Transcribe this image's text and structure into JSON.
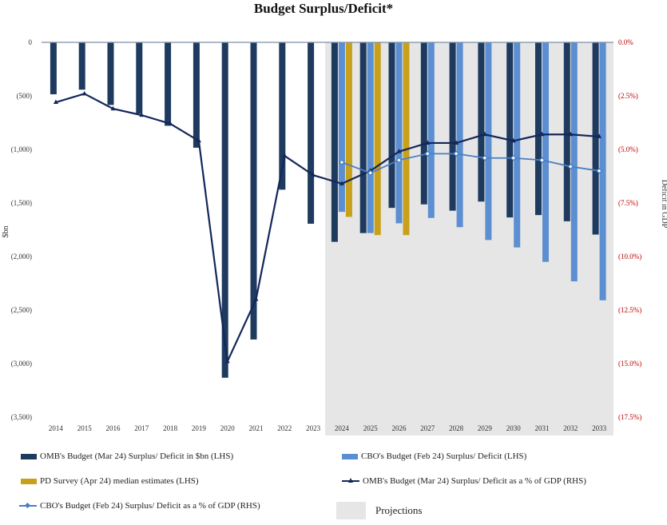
{
  "chart_data": {
    "type": "bar",
    "title": "Budget Surplus/Deficit*",
    "ylabel_left": "$bn",
    "ylabel_right": "Deficit in GDP",
    "ylim_left": [
      -3500,
      0
    ],
    "ylim_right": [
      -17.5,
      0
    ],
    "yticks_left": [
      0,
      -500,
      -1000,
      -1500,
      -2000,
      -2500,
      -3000,
      -3500
    ],
    "yticks_left_labels": [
      "0",
      "(500)",
      "(1,000)",
      "(1,500)",
      "(2,000)",
      "(2,500)",
      "(3,000)",
      "(3,500)"
    ],
    "yticks_right_labels": [
      "0.0%",
      "(2.5%)",
      "(5.0%)",
      "(7.5%)",
      "(10.0%)",
      "(12.5%)",
      "(15.0%)",
      "(17.5%)"
    ],
    "categories": [
      "2014",
      "2015",
      "2016",
      "2017",
      "2018",
      "2019",
      "2020",
      "2021",
      "2022",
      "2023",
      "2024",
      "2025",
      "2026",
      "2027",
      "2028",
      "2029",
      "2030",
      "2031",
      "2032",
      "2033"
    ],
    "projection_start": "2024",
    "projection_label": "Projections",
    "series": [
      {
        "name": "OMB's Budget  (Mar 24) Surplus/ Deficit in $bn (LHS)",
        "kind": "bar",
        "axis": "left",
        "color": "#1f3a5f",
        "values": [
          -485,
          -442,
          -585,
          -665,
          -779,
          -984,
          -3132,
          -2775,
          -1376,
          -1694,
          -1863,
          -1781,
          -1546,
          -1513,
          -1572,
          -1487,
          -1635,
          -1613,
          -1671,
          -1795
        ]
      },
      {
        "name": "CBO's Budget (Feb 24) Surplus/ Deficit (LHS)",
        "kind": "bar",
        "axis": "left",
        "color": "#5b8fd1",
        "values": [
          null,
          null,
          null,
          null,
          null,
          null,
          null,
          null,
          null,
          null,
          -1583,
          -1781,
          -1690,
          -1640,
          -1726,
          -1846,
          -1915,
          -2050,
          -2232,
          -2409
        ]
      },
      {
        "name": "PD Survey (Apr 24) median estimates (LHS)",
        "kind": "bar",
        "axis": "left",
        "color": "#c8a01c",
        "values": [
          null,
          null,
          null,
          null,
          null,
          null,
          null,
          null,
          null,
          null,
          -1630,
          -1800,
          -1800,
          null,
          null,
          null,
          null,
          null,
          null,
          null
        ]
      },
      {
        "name": "OMB's Budget  (Mar 24) Surplus/ Deficit as a % of GDP (RHS)",
        "kind": "line",
        "axis": "right",
        "color": "#14275a",
        "marker": "triangle",
        "values": [
          -2.8,
          -2.4,
          -3.1,
          -3.4,
          -3.8,
          -4.6,
          -14.9,
          -12.0,
          -5.3,
          -6.2,
          -6.6,
          -6.0,
          -5.1,
          -4.7,
          -4.7,
          -4.3,
          -4.6,
          -4.3,
          -4.3,
          -4.4
        ]
      },
      {
        "name": "CBO's Budget (Feb 24) Surplus/ Deficit as a % of GDP (RHS)",
        "kind": "line",
        "axis": "right",
        "color": "#4a7fc1",
        "marker": "diamond",
        "values": [
          null,
          null,
          null,
          null,
          null,
          null,
          null,
          null,
          null,
          null,
          -5.6,
          -6.1,
          -5.5,
          -5.2,
          -5.2,
          -5.4,
          -5.4,
          -5.5,
          -5.8,
          -6.0
        ]
      }
    ]
  }
}
